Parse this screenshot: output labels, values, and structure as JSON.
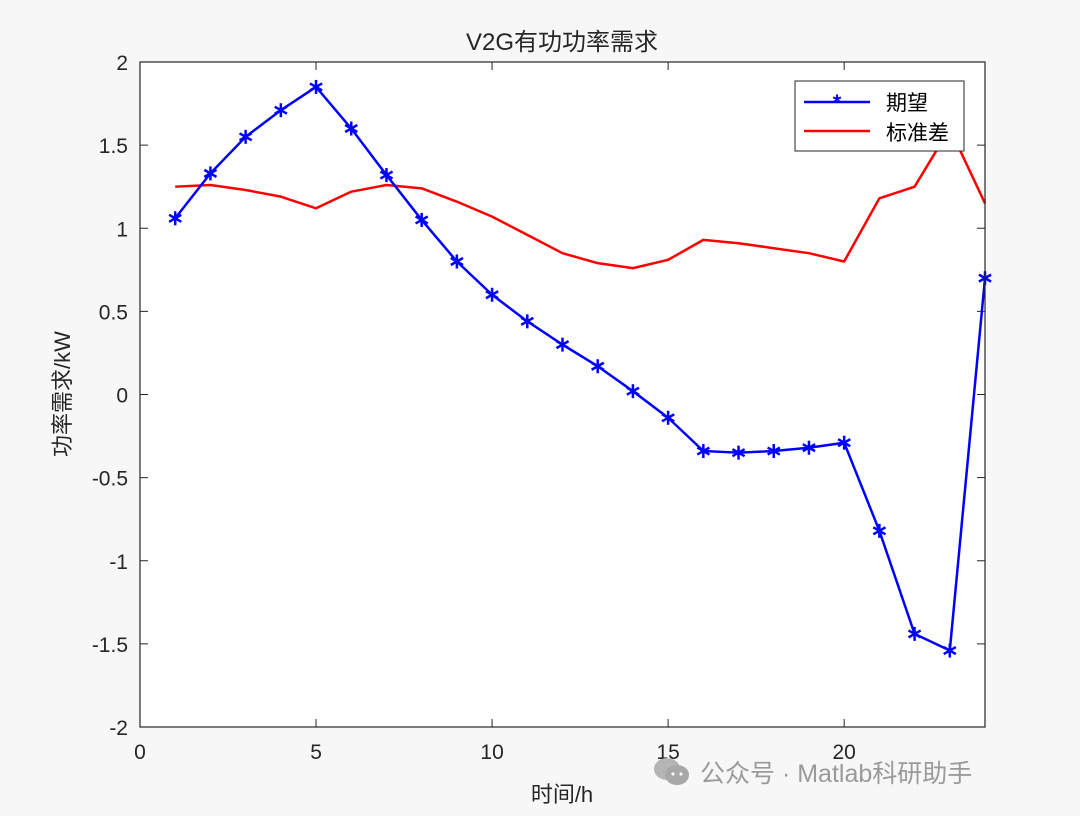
{
  "chart_data": {
    "type": "line",
    "title": "V2G有功功率需求",
    "xlabel": "时间/h",
    "ylabel": "功率需求/kW",
    "xlim": [
      0,
      24
    ],
    "ylim": [
      -2,
      2
    ],
    "xticks": [
      0,
      5,
      10,
      15,
      20
    ],
    "yticks": [
      -2,
      -1.5,
      -1,
      -0.5,
      0,
      0.5,
      1,
      1.5,
      2
    ],
    "grid": false,
    "legend_position": "northeast",
    "x": [
      1,
      2,
      3,
      4,
      5,
      6,
      7,
      8,
      9,
      10,
      11,
      12,
      13,
      14,
      15,
      16,
      17,
      18,
      19,
      20,
      21,
      22,
      23,
      24
    ],
    "series": [
      {
        "name": "期望",
        "color": "#0000ff",
        "marker": "*",
        "values": [
          1.06,
          1.33,
          1.55,
          1.71,
          1.85,
          1.6,
          1.32,
          1.05,
          0.8,
          0.6,
          0.44,
          0.3,
          0.17,
          0.02,
          -0.14,
          -0.34,
          -0.35,
          -0.34,
          -0.32,
          -0.29,
          -0.82,
          -1.44,
          -1.54,
          0.7
        ]
      },
      {
        "name": "标准差",
        "color": "#ff0000",
        "marker": "none",
        "values": [
          1.25,
          1.26,
          1.23,
          1.19,
          1.12,
          1.22,
          1.26,
          1.24,
          1.16,
          1.07,
          0.96,
          0.85,
          0.79,
          0.76,
          0.81,
          0.93,
          0.91,
          0.88,
          0.85,
          0.8,
          1.18,
          1.25,
          1.6,
          1.15
        ]
      }
    ]
  },
  "watermark": {
    "text": "公众号 · Matlab科研助手"
  }
}
